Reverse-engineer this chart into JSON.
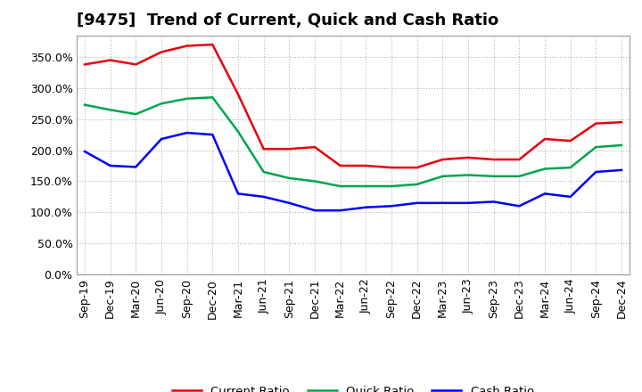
{
  "title": "[9475]  Trend of Current, Quick and Cash Ratio",
  "x_labels": [
    "Sep-19",
    "Dec-19",
    "Mar-20",
    "Jun-20",
    "Sep-20",
    "Dec-20",
    "Mar-21",
    "Jun-21",
    "Sep-21",
    "Dec-21",
    "Mar-22",
    "Jun-22",
    "Sep-22",
    "Dec-22",
    "Mar-23",
    "Jun-23",
    "Sep-23",
    "Dec-23",
    "Mar-24",
    "Jun-24",
    "Sep-24",
    "Dec-24"
  ],
  "current_ratio": [
    338,
    345,
    338,
    358,
    368,
    370,
    290,
    202,
    202,
    205,
    175,
    175,
    172,
    172,
    185,
    188,
    185,
    185,
    218,
    215,
    243,
    245
  ],
  "quick_ratio": [
    273,
    265,
    258,
    275,
    283,
    285,
    230,
    165,
    155,
    150,
    142,
    142,
    142,
    145,
    158,
    160,
    158,
    158,
    170,
    172,
    205,
    208
  ],
  "cash_ratio": [
    198,
    175,
    173,
    218,
    228,
    225,
    130,
    125,
    115,
    103,
    103,
    108,
    110,
    115,
    115,
    115,
    117,
    110,
    130,
    125,
    165,
    168
  ],
  "current_color": "#e8000d",
  "quick_color": "#00a550",
  "cash_color": "#0000ff",
  "ylim": [
    0,
    385
  ],
  "yticks": [
    0,
    50,
    100,
    150,
    200,
    250,
    300,
    350
  ],
  "background_color": "#ffffff",
  "plot_bg_color": "#ffffff",
  "grid_color": "#888888",
  "legend_labels": [
    "Current Ratio",
    "Quick Ratio",
    "Cash Ratio"
  ],
  "line_width": 1.8,
  "title_fontsize": 13,
  "tick_fontsize": 9,
  "ytick_fontsize": 9
}
